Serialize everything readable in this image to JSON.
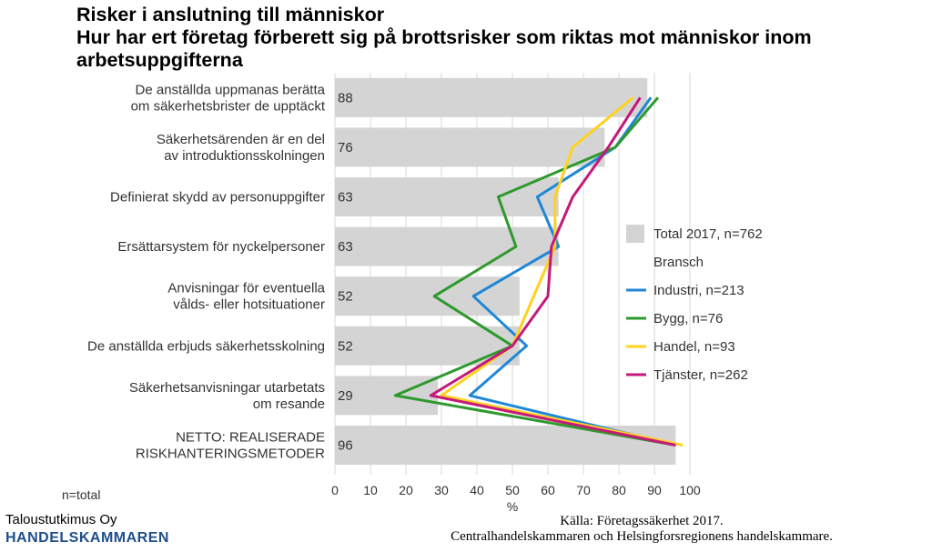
{
  "title_lines": [
    "Risker i anslutning till människor",
    "Hur har ert företag förberett sig på brottsrisker som riktas mot människor inom",
    "arbetsuppgifterna"
  ],
  "chart_data": {
    "type": "bar",
    "orientation": "horizontal",
    "categories": [
      [
        "De anställda uppmanas berätta",
        "om säkerhetsbrister de upptäckt"
      ],
      [
        "Säkerhetsärenden är en del",
        "av introduktionsskolningen"
      ],
      [
        "Definierat skydd av personuppgifter"
      ],
      [
        "Ersättarsystem för nyckelpersoner"
      ],
      [
        "Anvisningar för eventuella",
        "vålds- eller hotsituationer"
      ],
      [
        "De anställda erbjuds säkerhetsskolning"
      ],
      [
        "Säkerhetsanvisningar utarbetats",
        "om resande"
      ],
      [
        "NETTO: REALISERADE",
        "RISKHANTERINGSMETODER"
      ]
    ],
    "bar_series": {
      "name": "Total 2017, n=762",
      "color": "#d4d4d4",
      "values": [
        88,
        76,
        63,
        63,
        52,
        52,
        29,
        96
      ]
    },
    "line_group_label": "Bransch",
    "line_series": [
      {
        "name": "Industri, n=213",
        "color": "#1f87d6",
        "values": [
          89,
          79,
          57,
          63,
          39,
          54,
          38,
          96
        ]
      },
      {
        "name": "Bygg, n=76",
        "color": "#2e9a2e",
        "values": [
          91,
          79,
          46,
          51,
          28,
          50,
          17,
          96
        ]
      },
      {
        "name": "Handel, n=93",
        "color": "#ffd21f",
        "values": [
          84,
          67,
          62,
          62,
          56,
          50,
          30,
          98
        ]
      },
      {
        "name": "Tjänster, n=262",
        "color": "#c4197a",
        "values": [
          86,
          77,
          67,
          61,
          60,
          50,
          27,
          96
        ]
      }
    ],
    "xlabel": "%",
    "xlim": [
      0,
      100
    ],
    "xticks": [
      0,
      10,
      20,
      30,
      40,
      50,
      60,
      70,
      80,
      90,
      100
    ],
    "grid": true,
    "legend_position": "right"
  },
  "footer": {
    "note": "n=total",
    "org_name": "Taloustutkimus Oy",
    "org_brand": "HANDELSKAMMAREN",
    "source_lines": [
      "Källa: Företagssäkerhet 2017.",
      "Centralhandelskammaren och Helsingforsregionens handelskammare."
    ]
  }
}
